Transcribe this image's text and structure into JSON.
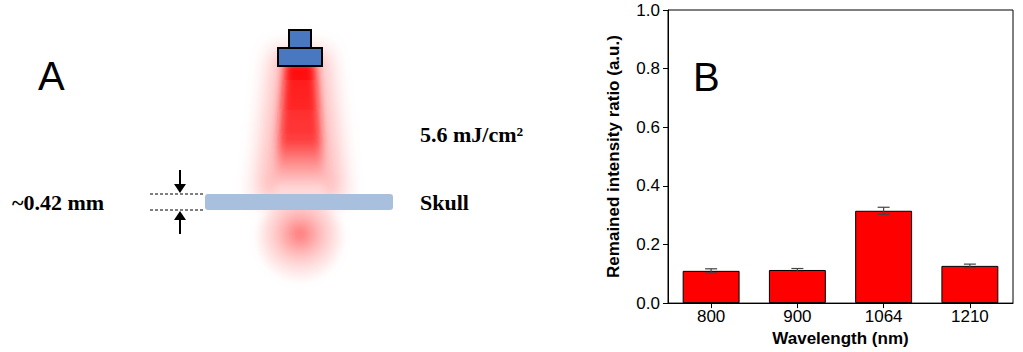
{
  "diagram": {
    "label": "A",
    "thickness": "~0.42 mm",
    "fluence": "5.6 mJ/cm²",
    "layer": "Skull"
  },
  "chart_data": {
    "type": "bar",
    "title": "B",
    "x_label": "Wavelength (nm)",
    "y_label": "Remained intensity ratio (a.u.)",
    "categories": [
      "800",
      "900",
      "1064",
      "1210"
    ],
    "values": [
      0.11,
      0.113,
      0.315,
      0.127
    ],
    "errors": [
      0.007,
      0.005,
      0.012,
      0.006
    ],
    "color": "#ff0000",
    "ylim": [
      0,
      1
    ],
    "yticks": [
      {
        "value": 0,
        "label": "0.0"
      },
      0.2,
      0.4,
      0.6,
      0.8,
      {
        "value": 1,
        "label": "1.0"
      }
    ],
    "grid": false
  }
}
